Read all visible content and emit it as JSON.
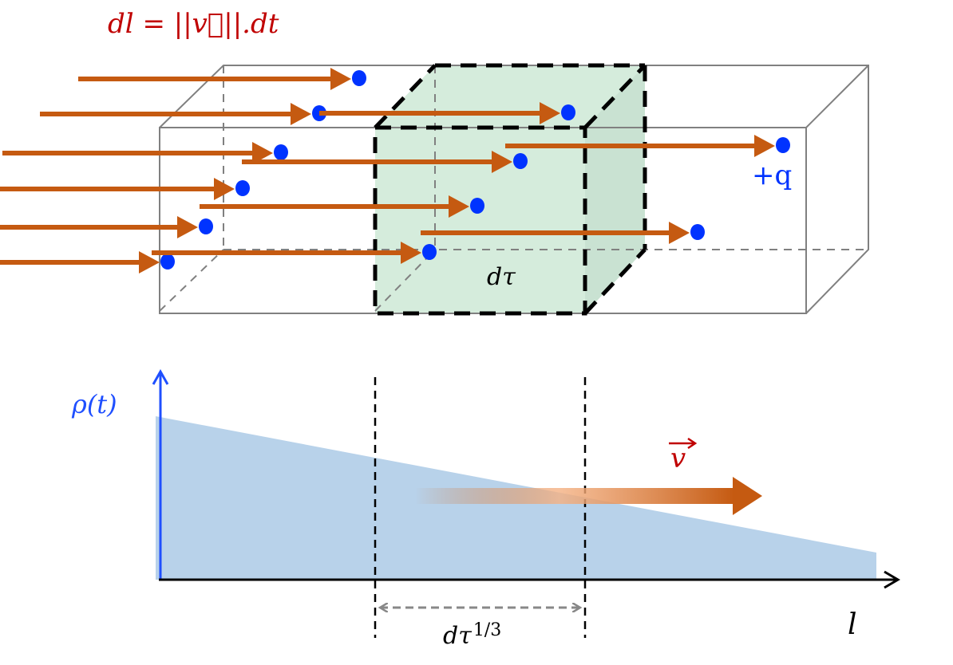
{
  "formula": "dl = ||v⃗||.dt",
  "formula_parts": {
    "lhs": "dl = ||",
    "vec": "v",
    "rhs": " ||.dt"
  },
  "charge_label": "+q",
  "volume_label": "dτ",
  "density_label": "ρ(t)",
  "velocity_label": "v",
  "length_label": "l",
  "width_label_base": "dτ",
  "width_label_exp": "1/3",
  "colors": {
    "arrow": "#c55a11",
    "charge": "#0033ff",
    "volume_fill": "#d5ecdc",
    "density_fill": "#b8d2ea",
    "formula": "#c00000",
    "axis_y": "#1f4fff"
  }
}
